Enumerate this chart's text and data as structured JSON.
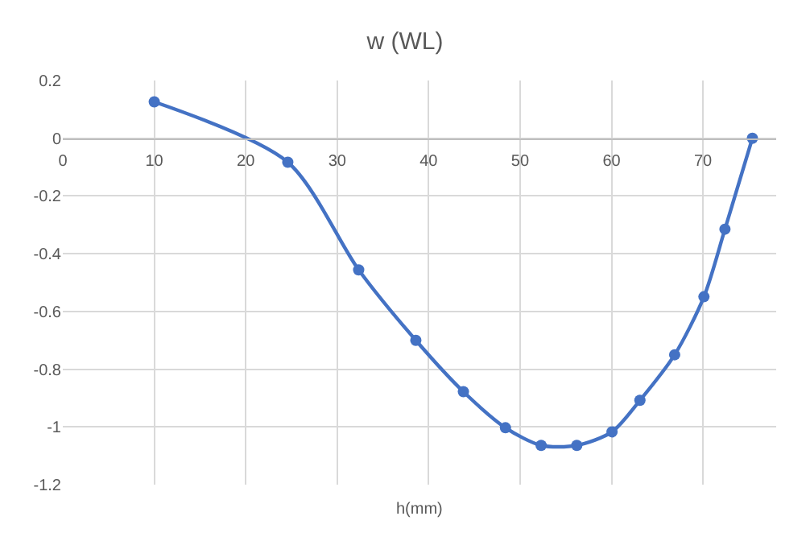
{
  "chart_data": {
    "type": "line",
    "title": "w (WL)",
    "xlabel": "h(mm)",
    "x": [
      10.0,
      24.6,
      32.35,
      38.6,
      43.8,
      48.4,
      52.3,
      56.2,
      60.05,
      63.1,
      66.9,
      70.1,
      72.4,
      75.4
    ],
    "series": [
      {
        "color": "#4472c4",
        "values": [
          0.126,
          -0.083,
          -0.456,
          -0.7,
          -0.878,
          -1.003,
          -1.064,
          -1.064,
          -1.017,
          -0.908,
          -0.75,
          -0.549,
          -0.315,
          0.0
        ]
      }
    ],
    "xlim": [
      0,
      78
    ],
    "xticks": [
      0,
      10,
      20,
      30,
      40,
      50,
      60,
      70
    ],
    "ylim": [
      -1.2,
      0.2
    ],
    "yticks": [
      0.2,
      0,
      -0.2,
      -0.4,
      -0.6,
      -0.8,
      -1,
      -1.2
    ],
    "grid": true,
    "marker": "circle",
    "line_style": "solid"
  }
}
